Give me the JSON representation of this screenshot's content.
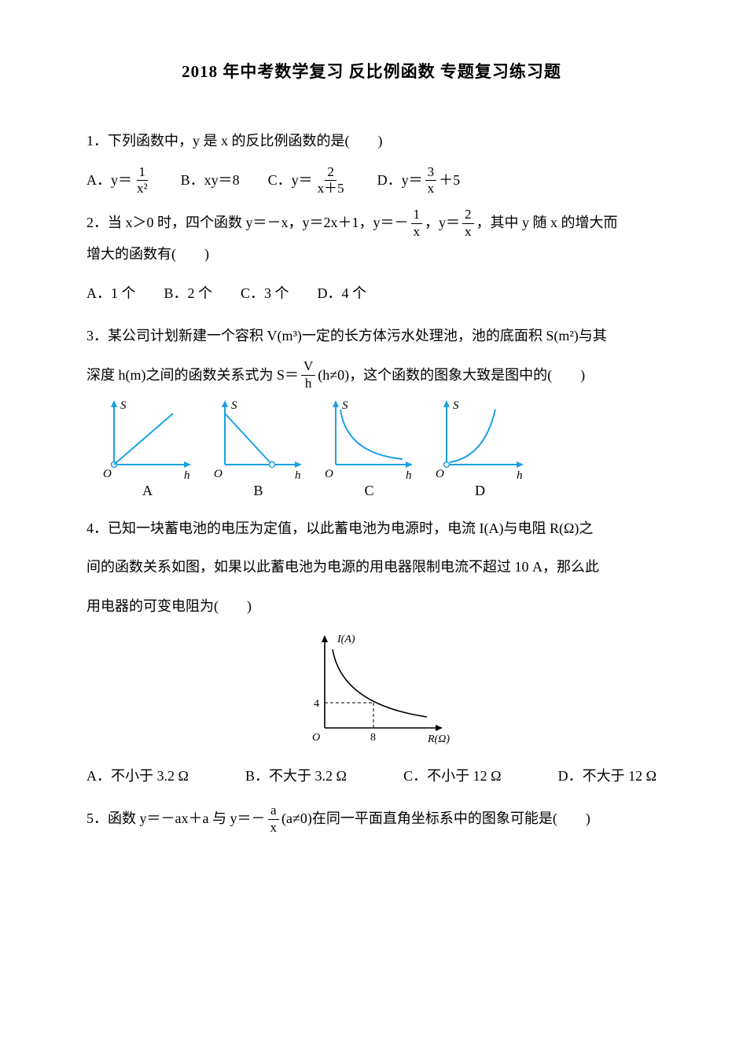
{
  "title": "2018 年中考数学复习  反比例函数  专题复习练习题",
  "q1": {
    "text": "1．下列函数中，y 是 x 的反比例函数的是(　　)",
    "optA_prefix": "A．y＝",
    "optA_num": "1",
    "optA_den": "x²",
    "optB": "B．xy＝8",
    "optC_prefix": "C．y＝",
    "optC_num": "2",
    "optC_den": "x＋5",
    "optD_prefix": "D．y＝",
    "optD_num": "3",
    "optD_den": "x",
    "optD_suffix": "＋5"
  },
  "q2": {
    "part1": "2．当 x＞0 时，四个函数 y＝－x，y＝2x＋1，y＝－",
    "f1_num": "1",
    "f1_den": "x",
    "part2": "，y＝",
    "f2_num": "2",
    "f2_den": "x",
    "part3": "，其中 y 随 x 的增大而",
    "part4": "增大的函数有(　　)",
    "optA": "A．1 个",
    "optB": "B．2 个",
    "optC": "C．3 个",
    "optD": "D．4 个"
  },
  "q3": {
    "line1": "3．某公司计划新建一个容积 V(m³)一定的长方体污水处理池，池的底面积 S(m²)与其",
    "line2a": "深度 h(m)之间的函数关系式为 S＝",
    "frac_num": "V",
    "frac_den": "h",
    "line2b": "(h≠0)，这个函数的图象大致是图中的(　　)",
    "labels": {
      "A": "A",
      "B": "B",
      "C": "C",
      "D": "D"
    },
    "axis": {
      "S": "S",
      "h": "h",
      "O": "O"
    },
    "stroke": "#1ba1e2",
    "stroke_width": 2
  },
  "q4": {
    "line1": "4．已知一块蓄电池的电压为定值，以此蓄电池为电源时，电流 I(A)与电阻 R(Ω)之",
    "line2": "间的函数关系如图，如果以此蓄电池为电源的用电器限制电流不超过 10 A，那么此",
    "line3": "用电器的可变电阻为(　　)",
    "graph": {
      "ylabel": "I(A)",
      "xlabel": "R(Ω)",
      "O": "O",
      "ytick": "4",
      "xtick": "8",
      "stroke": "#000000",
      "stroke_width": 1.6
    },
    "optA": "A．不小于 3.2 Ω",
    "optB": "B．不大于 3.2 Ω",
    "optC": "C．不小于 12 Ω",
    "optD": "D．不大于 12 Ω"
  },
  "q5": {
    "part1": "5．函数 y＝－ax＋a 与 y＝－",
    "frac_num": "a",
    "frac_den": "x",
    "part2": "(a≠0)在同一平面直角坐标系中的图象可能是(　　)"
  }
}
